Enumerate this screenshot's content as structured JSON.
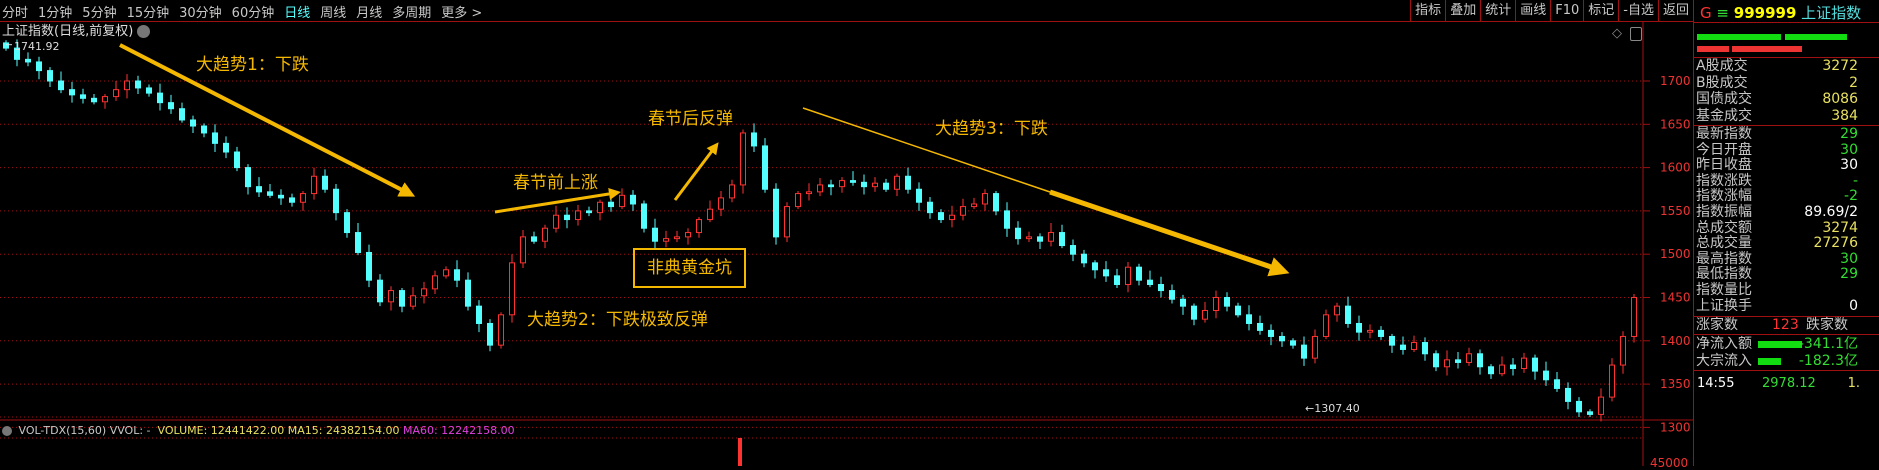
{
  "topbar": {
    "periods": [
      "分时",
      "1分钟",
      "5分钟",
      "15分钟",
      "30分钟",
      "60分钟",
      "日线",
      "周线",
      "月线",
      "多周期",
      "更多 >"
    ],
    "active": "日线",
    "tools": [
      "指标",
      "叠加",
      "统计",
      "画线",
      "F10",
      "标记",
      "-自选",
      "返回"
    ]
  },
  "chart_title": "上证指数(日线,前复权)",
  "annotations": {
    "trend1": "大趋势1：下跌",
    "pre_festival": "春节前上涨",
    "post_festival": "春节后反弹",
    "sars_pit": "非典黄金坑",
    "trend2": "大趋势2：下跌极致反弹",
    "trend3": "大趋势3：下跌",
    "high_label": "1741.92",
    "low_label": "←1307.40"
  },
  "volume_bar": {
    "name": "VOL-TDX(15,60)",
    "vvol": "VVOL: -",
    "volume": "VOLUME: 12441422.00",
    "ma15": "MA15: 24382154.00",
    "ma60": "MA60: 12242158.00",
    "axis_label": "45000"
  },
  "colors": {
    "up": "#ff3232",
    "down": "#54ffff",
    "annotation": "#f5b800",
    "grid": "#a01010",
    "ma60": "#e040e0"
  },
  "chart_data": {
    "type": "candlestick",
    "ylim": [
      1290,
      1750
    ],
    "yticks": [
      "1700",
      "1650",
      "1600",
      "1550",
      "1500",
      "1450",
      "1400",
      "1350",
      "1300"
    ],
    "closes": [
      1738,
      1725,
      1722,
      1712,
      1700,
      1690,
      1684,
      1680,
      1676,
      1682,
      1690,
      1700,
      1692,
      1686,
      1675,
      1668,
      1655,
      1648,
      1640,
      1628,
      1618,
      1600,
      1578,
      1572,
      1568,
      1565,
      1560,
      1570,
      1590,
      1575,
      1548,
      1525,
      1502,
      1470,
      1445,
      1458,
      1440,
      1452,
      1460,
      1475,
      1482,
      1470,
      1440,
      1420,
      1395,
      1430,
      1490,
      1520,
      1515,
      1530,
      1545,
      1540,
      1550,
      1548,
      1560,
      1555,
      1568,
      1558,
      1530,
      1515,
      1518,
      1520,
      1525,
      1540,
      1552,
      1565,
      1580,
      1640,
      1625,
      1575,
      1520,
      1555,
      1570,
      1572,
      1580,
      1578,
      1585,
      1583,
      1578,
      1582,
      1575,
      1590,
      1575,
      1560,
      1548,
      1540,
      1545,
      1555,
      1558,
      1570,
      1550,
      1530,
      1518,
      1520,
      1515,
      1525,
      1510,
      1500,
      1490,
      1482,
      1475,
      1465,
      1485,
      1470,
      1465,
      1458,
      1448,
      1440,
      1425,
      1435,
      1450,
      1440,
      1430,
      1420,
      1412,
      1405,
      1400,
      1395,
      1380,
      1405,
      1430,
      1440,
      1420,
      1410,
      1412,
      1405,
      1395,
      1390,
      1398,
      1385,
      1370,
      1378,
      1375,
      1385,
      1370,
      1362,
      1372,
      1368,
      1380,
      1365,
      1355,
      1345,
      1330,
      1318,
      1315,
      1335,
      1372,
      1405,
      1450
    ],
    "high": 1741.92,
    "low": 1307.4
  },
  "panel": {
    "code": "999999",
    "name": "上证指数",
    "g": "G",
    "menu": "≡",
    "rows1": [
      {
        "label": "A股成交",
        "value": "3272",
        "c": "y"
      },
      {
        "label": "B股成交",
        "value": "2",
        "c": "y"
      },
      {
        "label": "国债成交",
        "value": "8086",
        "c": "y"
      },
      {
        "label": "基金成交",
        "value": "384",
        "c": "y"
      }
    ],
    "rows2": [
      {
        "label": "最新指数",
        "value": "29",
        "c": "g"
      },
      {
        "label": "今日开盘",
        "value": "30",
        "c": "g"
      },
      {
        "label": "昨日收盘",
        "value": "30",
        "c": "w"
      },
      {
        "label": "指数涨跌",
        "value": "-",
        "c": "g"
      },
      {
        "label": "指数涨幅",
        "value": "-2",
        "c": "g"
      },
      {
        "label": "指数振幅",
        "value": "89.69/2",
        "c": "w"
      },
      {
        "label": "总成交额",
        "value": "3274",
        "c": "y"
      },
      {
        "label": "总成交量",
        "value": "27276",
        "c": "y"
      },
      {
        "label": "最高指数",
        "value": "30",
        "c": "g"
      },
      {
        "label": "最低指数",
        "value": "29",
        "c": "g"
      },
      {
        "label": "指数量比",
        "value": "",
        "c": "w"
      },
      {
        "label": "上证换手",
        "value": "0",
        "c": "w"
      }
    ],
    "adv_label": "涨家数",
    "adv_value": "123",
    "dec_label": "跌家数",
    "net_inflow_label": "净流入额",
    "net_inflow": "-341.1亿",
    "block_label": "大宗流入",
    "block_inflow": "-182.3亿",
    "time": "14:55",
    "price": "2978.12",
    "tail": "1."
  }
}
